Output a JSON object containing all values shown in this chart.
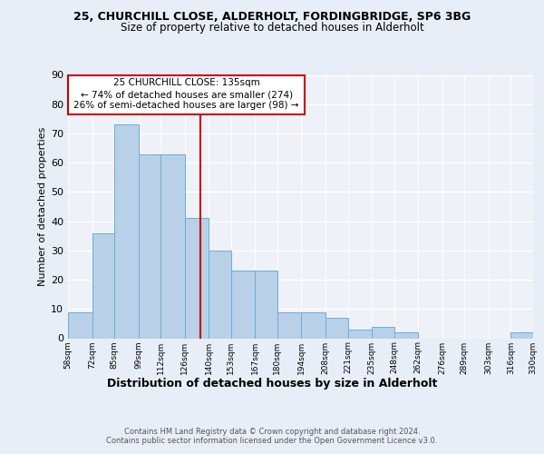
{
  "title1": "25, CHURCHILL CLOSE, ALDERHOLT, FORDINGBRIDGE, SP6 3BG",
  "title2": "Size of property relative to detached houses in Alderholt",
  "xlabel": "Distribution of detached houses by size in Alderholt",
  "ylabel": "Number of detached properties",
  "footer1": "Contains HM Land Registry data © Crown copyright and database right 2024.",
  "footer2": "Contains public sector information licensed under the Open Government Licence v3.0.",
  "annotation_line1": "25 CHURCHILL CLOSE: 135sqm",
  "annotation_line2": "← 74% of detached houses are smaller (274)",
  "annotation_line3": "26% of semi-detached houses are larger (98) →",
  "property_value": 135,
  "bar_left_edges": [
    58,
    72,
    85,
    99,
    112,
    126,
    140,
    153,
    167,
    180,
    194,
    208,
    221,
    235,
    248,
    262,
    276,
    289,
    303,
    316
  ],
  "bar_heights": [
    9,
    36,
    73,
    63,
    63,
    41,
    30,
    23,
    23,
    9,
    9,
    7,
    3,
    4,
    2,
    0,
    0,
    0,
    0,
    2
  ],
  "bar_color": "#b8d0e8",
  "bar_edgecolor": "#6baed6",
  "vline_color": "#cc0000",
  "vline_x": 135,
  "ylim": [
    0,
    90
  ],
  "yticks": [
    0,
    10,
    20,
    30,
    40,
    50,
    60,
    70,
    80,
    90
  ],
  "tick_labels": [
    "58sqm",
    "72sqm",
    "85sqm",
    "99sqm",
    "112sqm",
    "126sqm",
    "140sqm",
    "153sqm",
    "167sqm",
    "180sqm",
    "194sqm",
    "208sqm",
    "221sqm",
    "235sqm",
    "248sqm",
    "262sqm",
    "276sqm",
    "289sqm",
    "303sqm",
    "316sqm",
    "330sqm"
  ],
  "background_color": "#e8eef8",
  "plot_background": "#eef2f8",
  "ann_box_color": "#cc0000",
  "ann_box_facecolor": "white"
}
